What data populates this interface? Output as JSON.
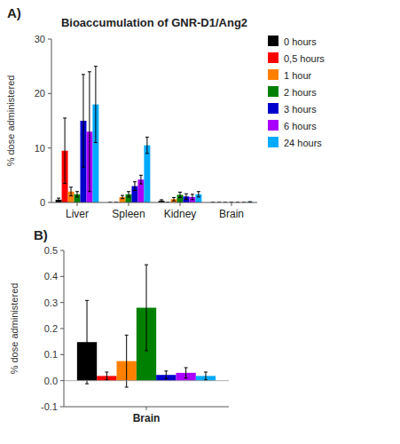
{
  "chart_data": [
    {
      "type": "bar",
      "title": "Bioaccumulation of GNR-D1/Ang2",
      "annotations": [
        "A)"
      ],
      "y_label": "% dose administered",
      "categories": [
        "Liver",
        "Spleen",
        "Kidney",
        "Brain"
      ],
      "series": [
        {
          "name": "0 hours",
          "color": "#000000",
          "values": [
            0.5,
            0.0,
            0.3,
            0.0
          ],
          "errors": [
            0.3,
            0.0,
            0.2,
            0.0
          ]
        },
        {
          "name": "0,5 hours",
          "color": "#ff0000",
          "values": [
            9.5,
            0.0,
            0.0,
            0.0
          ],
          "errors": [
            6.0,
            0.0,
            0.0,
            0.0
          ]
        },
        {
          "name": "1 hour",
          "color": "#ff8000",
          "values": [
            2.0,
            1.0,
            0.6,
            0.0
          ],
          "errors": [
            0.8,
            0.3,
            0.3,
            0.0
          ]
        },
        {
          "name": "2 hours",
          "color": "#008000",
          "values": [
            1.5,
            1.5,
            1.4,
            0.0
          ],
          "errors": [
            0.5,
            0.5,
            0.5,
            0.0
          ]
        },
        {
          "name": "3 hours",
          "color": "#0000cc",
          "values": [
            15.0,
            3.0,
            1.1,
            0.0
          ],
          "errors": [
            8.5,
            0.8,
            0.5,
            0.0
          ]
        },
        {
          "name": "6 hours",
          "color": "#aa00ff",
          "values": [
            13.0,
            4.2,
            1.0,
            0.0
          ],
          "errors": [
            11.0,
            0.8,
            0.5,
            0.0
          ]
        },
        {
          "name": "24 hours",
          "color": "#00aaff",
          "values": [
            18.0,
            10.5,
            1.5,
            0.1
          ],
          "errors": [
            7.0,
            1.5,
            0.5,
            0.05
          ]
        }
      ],
      "ylim": [
        0,
        30
      ],
      "yticks": [
        0,
        10,
        20,
        30
      ],
      "grid": false,
      "legend": "right"
    },
    {
      "type": "bar",
      "annotations": [
        "B)"
      ],
      "y_label": "% dose administered",
      "categories": [
        "Brain"
      ],
      "series": [
        {
          "color": "#000000",
          "values": [
            0.148
          ],
          "errors": [
            0.16
          ]
        },
        {
          "color": "#ff0000",
          "values": [
            0.018
          ],
          "errors": [
            0.015
          ]
        },
        {
          "color": "#ff8000",
          "values": [
            0.075
          ],
          "errors": [
            0.1
          ]
        },
        {
          "color": "#008000",
          "values": [
            0.28
          ],
          "errors": [
            0.165
          ]
        },
        {
          "color": "#0000cc",
          "values": [
            0.022
          ],
          "errors": [
            0.015
          ]
        },
        {
          "color": "#aa00ff",
          "values": [
            0.03
          ],
          "errors": [
            0.02
          ]
        },
        {
          "color": "#00aaff",
          "values": [
            0.018
          ],
          "errors": [
            0.015
          ]
        }
      ],
      "ylim": [
        -0.1,
        0.5
      ],
      "yticks": [
        -0.1,
        {
          "value": 0,
          "label": "0.0"
        },
        0.1,
        0.2,
        0.3,
        0.4,
        0.5
      ],
      "grid": false
    }
  ]
}
